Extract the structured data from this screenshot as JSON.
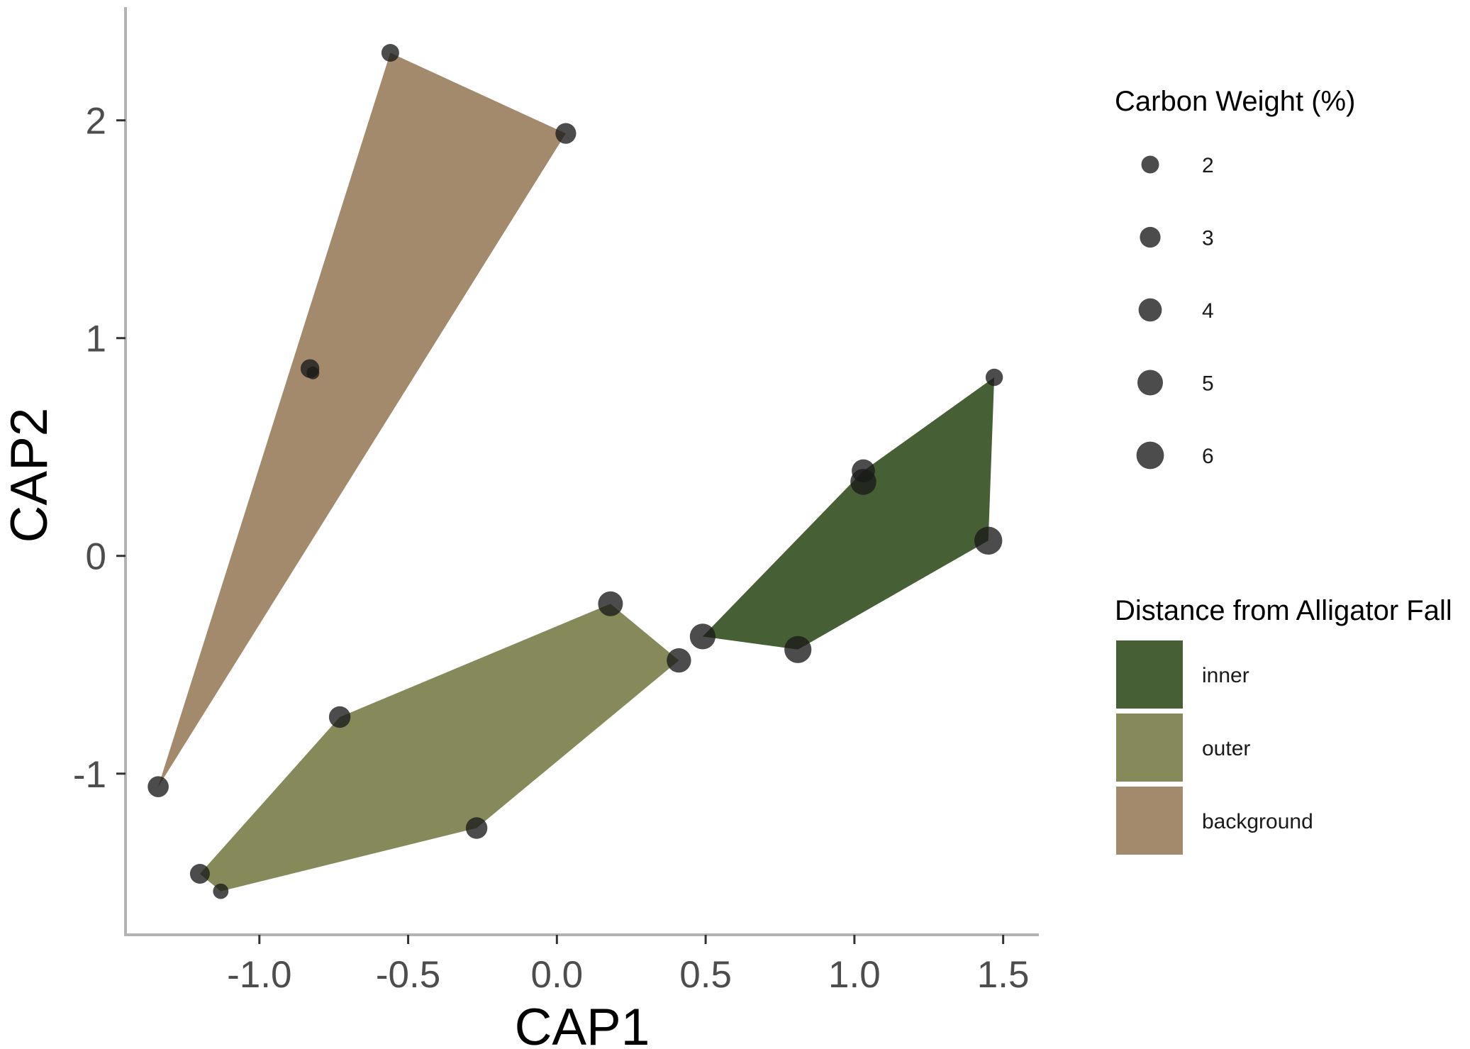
{
  "chart_data": {
    "type": "scatter",
    "xlabel": "CAP1",
    "ylabel": "CAP2",
    "xlim": [
      -1.45,
      1.62
    ],
    "ylim": [
      -1.74,
      2.52
    ],
    "xticks": [
      {
        "value": -1.0,
        "label": "-1.0"
      },
      {
        "value": -0.5,
        "label": "-0.5"
      },
      {
        "value": 0.0,
        "label": "0.0"
      },
      {
        "value": 0.5,
        "label": "0.5"
      },
      {
        "value": 1.0,
        "label": "1.0"
      },
      {
        "value": 1.5,
        "label": "1.5"
      }
    ],
    "yticks": [
      {
        "value": -1,
        "label": "-1"
      },
      {
        "value": 0,
        "label": "0"
      },
      {
        "value": 1,
        "label": "1"
      },
      {
        "value": 2,
        "label": "2"
      }
    ],
    "grid": false,
    "point_color": "#1a1a1a",
    "groups_legend_title": "Distance from Alligator Fall",
    "size_legend_title": "Carbon Weight (%)",
    "groups": [
      {
        "name": "inner",
        "color": "#465f35",
        "hull": [
          [
            0.49,
            -0.37
          ],
          [
            1.03,
            0.39
          ],
          [
            1.47,
            0.82
          ],
          [
            1.45,
            0.07
          ],
          [
            0.81,
            -0.43
          ]
        ]
      },
      {
        "name": "outer",
        "color": "#868a5a",
        "hull": [
          [
            -1.2,
            -1.46
          ],
          [
            -0.73,
            -0.74
          ],
          [
            0.18,
            -0.22
          ],
          [
            0.41,
            -0.48
          ],
          [
            -0.27,
            -1.25
          ],
          [
            -1.13,
            -1.54
          ]
        ]
      },
      {
        "name": "background",
        "color": "#a38a6d",
        "hull": [
          [
            -1.34,
            -1.06
          ],
          [
            -0.56,
            2.31
          ],
          [
            0.03,
            1.94
          ]
        ]
      }
    ],
    "points": [
      {
        "x": -0.56,
        "y": 2.31,
        "carbon": 2.0
      },
      {
        "x": 0.03,
        "y": 1.94,
        "carbon": 3.0
      },
      {
        "x": -0.83,
        "y": 0.86,
        "carbon": 2.3
      },
      {
        "x": -0.82,
        "y": 0.84,
        "carbon": 0.8
      },
      {
        "x": -1.34,
        "y": -1.06,
        "carbon": 3.1
      },
      {
        "x": -1.2,
        "y": -1.46,
        "carbon": 2.7
      },
      {
        "x": -1.13,
        "y": -1.54,
        "carbon": 1.4
      },
      {
        "x": -0.73,
        "y": -0.74,
        "carbon": 3.3
      },
      {
        "x": -0.27,
        "y": -1.25,
        "carbon": 3.3
      },
      {
        "x": 0.18,
        "y": -0.22,
        "carbon": 4.7
      },
      {
        "x": 0.41,
        "y": -0.48,
        "carbon": 4.5
      },
      {
        "x": 0.49,
        "y": -0.37,
        "carbon": 5.1
      },
      {
        "x": 0.81,
        "y": -0.43,
        "carbon": 5.8
      },
      {
        "x": 1.03,
        "y": 0.39,
        "carbon": 4.0
      },
      {
        "x": 1.03,
        "y": 0.34,
        "carbon": 5.2
      },
      {
        "x": 1.45,
        "y": 0.07,
        "carbon": 6.2
      },
      {
        "x": 1.47,
        "y": 0.82,
        "carbon": 1.9
      }
    ],
    "size_legend": [
      {
        "value": 2,
        "label": "2"
      },
      {
        "value": 3,
        "label": "3"
      },
      {
        "value": 4,
        "label": "4"
      },
      {
        "value": 5,
        "label": "5"
      },
      {
        "value": 6,
        "label": "6"
      }
    ]
  }
}
